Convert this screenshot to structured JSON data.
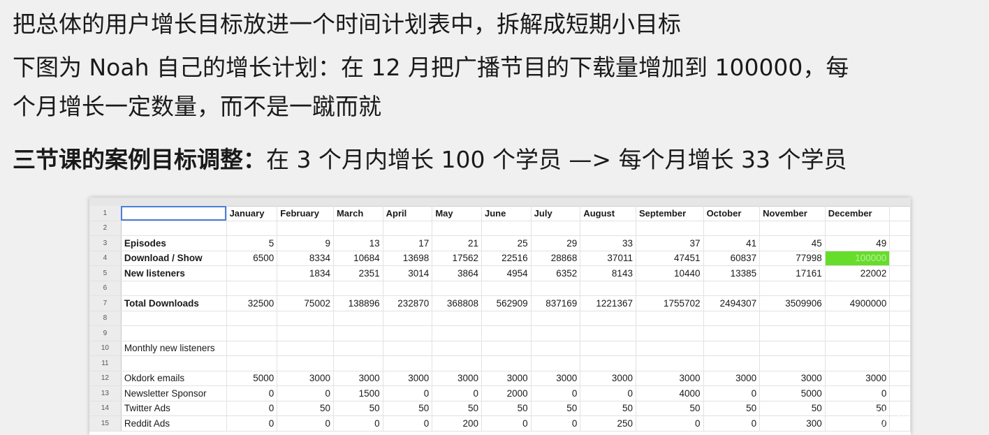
{
  "lines": {
    "line1": "把总体的用户增长目标放进一个时间计划表中，拆解成短期小目标",
    "line2": "下图为 Noah 自己的增长计划：在 12 月把广播节目的下载量增加到 100000，每",
    "line3": "个月增长一定数量，而不是一蹴而就",
    "line4_bold": "三节课的案例目标调整：",
    "line4_rest": "在 3 个月内增长 100 个学员 —> 每个月增长 33 个学员"
  },
  "spreadsheet": {
    "months": [
      "January",
      "February",
      "March",
      "April",
      "May",
      "June",
      "July",
      "August",
      "September",
      "October",
      "November",
      "December"
    ],
    "rows": [
      {
        "n": "1",
        "label": "",
        "values": [],
        "bold": false,
        "header": true
      },
      {
        "n": "2",
        "label": "",
        "values": [],
        "bold": false
      },
      {
        "n": "3",
        "label": "Episodes",
        "values": [
          "5",
          "9",
          "13",
          "17",
          "21",
          "25",
          "29",
          "33",
          "37",
          "41",
          "45",
          "49"
        ],
        "bold": true
      },
      {
        "n": "4",
        "label": "Download / Show",
        "values": [
          "6500",
          "8334",
          "10684",
          "13698",
          "17562",
          "22516",
          "28868",
          "37011",
          "47451",
          "60837",
          "77998",
          "100000"
        ],
        "bold": true
      },
      {
        "n": "5",
        "label": "New listeners",
        "values": [
          "",
          "1834",
          "2351",
          "3014",
          "3864",
          "4954",
          "6352",
          "8143",
          "10440",
          "13385",
          "17161",
          "22002"
        ],
        "bold": true
      },
      {
        "n": "6",
        "label": "",
        "values": [],
        "bold": false
      },
      {
        "n": "7",
        "label": "Total Downloads",
        "values": [
          "32500",
          "75002",
          "138896",
          "232870",
          "368808",
          "562909",
          "837169",
          "1221367",
          "1755702",
          "2494307",
          "3509906",
          "4900000"
        ],
        "bold": true
      },
      {
        "n": "8",
        "label": "",
        "values": [],
        "bold": false
      },
      {
        "n": "9",
        "label": "",
        "values": [],
        "bold": false
      },
      {
        "n": "10",
        "label": "Monthly new listeners",
        "values": [],
        "bold": false
      },
      {
        "n": "11",
        "label": "",
        "values": [],
        "bold": false
      },
      {
        "n": "12",
        "label": "Okdork emails",
        "values": [
          "5000",
          "3000",
          "3000",
          "3000",
          "3000",
          "3000",
          "3000",
          "3000",
          "3000",
          "3000",
          "3000",
          "3000"
        ],
        "bold": false
      },
      {
        "n": "13",
        "label": "Newsletter Sponsor",
        "values": [
          "0",
          "0",
          "1500",
          "0",
          "0",
          "2000",
          "0",
          "0",
          "4000",
          "0",
          "5000",
          "0"
        ],
        "bold": false
      },
      {
        "n": "14",
        "label": "Twitter Ads",
        "values": [
          "0",
          "50",
          "50",
          "50",
          "50",
          "50",
          "50",
          "50",
          "50",
          "50",
          "50",
          "50"
        ],
        "bold": false
      },
      {
        "n": "15",
        "label": "Reddit Ads",
        "values": [
          "0",
          "0",
          "0",
          "0",
          "200",
          "0",
          "0",
          "250",
          "0",
          "0",
          "300",
          "0"
        ],
        "bold": false
      }
    ],
    "highlight_color": "#66dd2a"
  },
  "watermark": "三节课"
}
